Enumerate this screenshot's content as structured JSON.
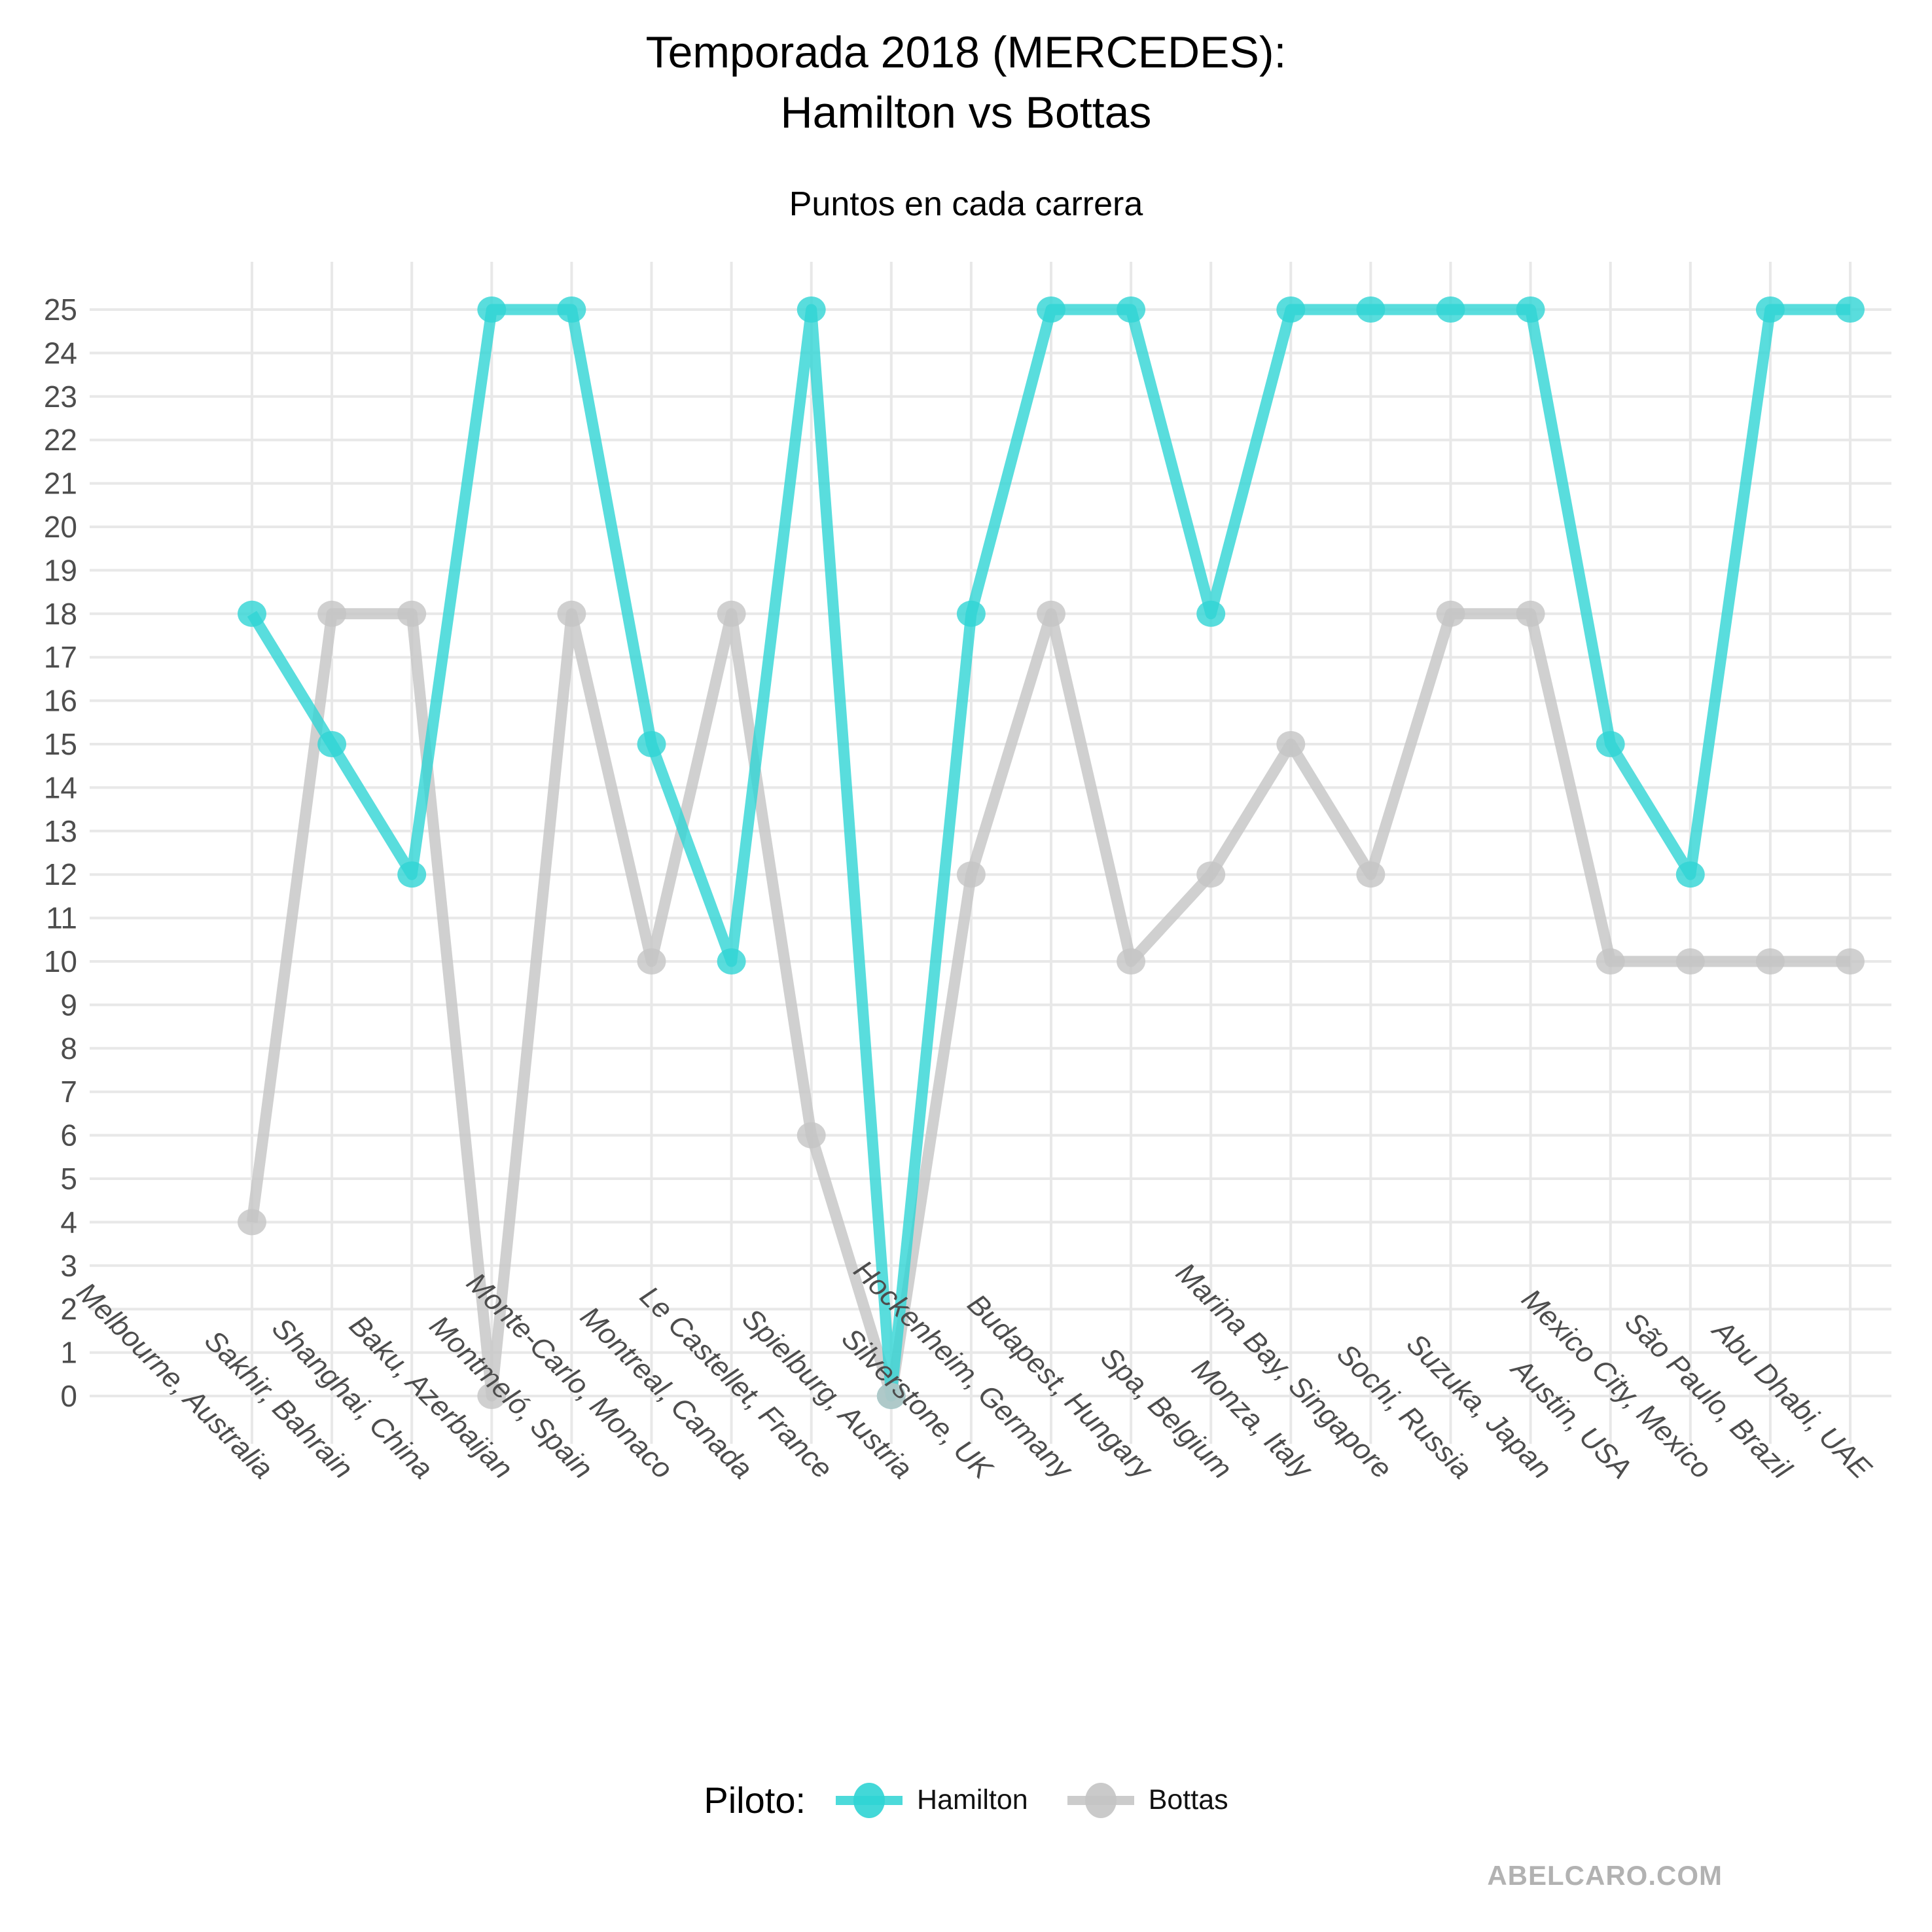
{
  "title": {
    "line1": "Temporada 2018 (MERCEDES):",
    "line2": "Hamilton vs Bottas"
  },
  "subtitle": "Puntos en cada carrera",
  "legend": {
    "title": "Piloto:",
    "items": [
      {
        "label": "Hamilton",
        "color": "#2fd4d4"
      },
      {
        "label": "Bottas",
        "color": "#c4c4c4"
      }
    ]
  },
  "watermark": "ABELCARO.COM",
  "chart_data": {
    "type": "line",
    "title": "Temporada 2018 (MERCEDES): Hamilton vs Bottas",
    "subtitle": "Puntos en cada carrera",
    "xlabel": "",
    "ylabel": "",
    "ylim": [
      0,
      25
    ],
    "yticks": [
      0,
      1,
      2,
      3,
      4,
      5,
      6,
      7,
      8,
      9,
      10,
      11,
      12,
      13,
      14,
      15,
      16,
      17,
      18,
      19,
      20,
      21,
      22,
      23,
      24,
      25
    ],
    "grid": "horizontal major every 1 unit; vertical line per category; no axis lines; no tick marks",
    "legend_position": "bottom",
    "x_tick_style": "italic, rotated 45deg",
    "categories": [
      "Melbourne, Australia",
      "Sakhir, Bahrain",
      "Shanghai, China",
      "Baku, Azerbaijan",
      "Montmeló, Spain",
      "Monte-Carlo, Monaco",
      "Montreal, Canada",
      "Le Castellet, France",
      "Spielburg, Austria",
      "Silverstone, UK",
      "Hockenheim, Germany",
      "Budapest, Hungary",
      "Spa, Belgium",
      "Monza, Italy",
      "Marina Bay, Singapore",
      "Sochi, Russia",
      "Suzuka, Japan",
      "Austin, USA",
      "Mexico City, Mexico",
      "São Paulo, Brazil",
      "Abu Dhabi, UAE"
    ],
    "series": [
      {
        "name": "Hamilton",
        "color": "#2fd4d4",
        "values": [
          18,
          15,
          12,
          25,
          25,
          15,
          10,
          25,
          0,
          18,
          25,
          25,
          18,
          25,
          25,
          25,
          25,
          15,
          12,
          25,
          25
        ]
      },
      {
        "name": "Bottas",
        "color": "#c4c4c4",
        "values": [
          4,
          18,
          18,
          0,
          18,
          10,
          18,
          6,
          0,
          12,
          18,
          10,
          12,
          15,
          12,
          18,
          18,
          10,
          10,
          10,
          10
        ]
      }
    ],
    "colors": {
      "gridline": "#e8e8e8",
      "axis_text": "#4d4d4d",
      "title_text": "#000000",
      "watermark_text": "#b2b2b2"
    }
  }
}
